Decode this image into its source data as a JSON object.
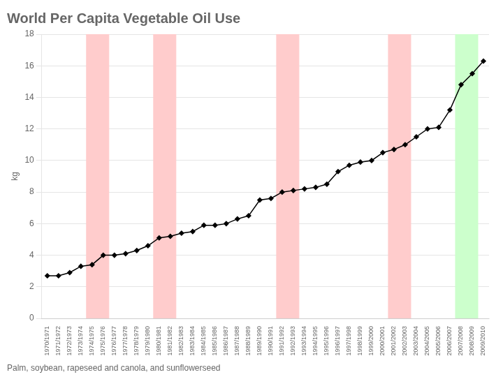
{
  "chart_data": {
    "type": "line",
    "title": "World Per Capita Vegetable Oil Use",
    "subtitle": "Palm, soybean, rapeseed and canola, and sunflowerseed",
    "ylabel": "kg",
    "categories": [
      "1970/1971",
      "1971/1972",
      "1972/1973",
      "1973/1974",
      "1974/1975",
      "1975/1976",
      "1976/1977",
      "1977/1978",
      "1978/1979",
      "1979/1980",
      "1980/1981",
      "1981/1982",
      "1982/1983",
      "1983/1984",
      "1984/1985",
      "1985/1986",
      "1986/1987",
      "1987/1988",
      "1988/1989",
      "1989/1990",
      "1990/1991",
      "1991/1992",
      "1992/1993",
      "1993/1994",
      "1994/1995",
      "1995/1996",
      "1996/1997",
      "1997/1998",
      "1998/1999",
      "1999/2000",
      "2000/2001",
      "2001/2002",
      "2002/2003",
      "2003/2004",
      "2004/2005",
      "2005/2006",
      "2006/2007",
      "2007/2008",
      "2008/2009",
      "2009/2010"
    ],
    "values": [
      2.7,
      2.7,
      2.9,
      3.3,
      3.4,
      4.0,
      4.0,
      4.1,
      4.3,
      4.6,
      5.1,
      5.2,
      5.4,
      5.5,
      5.9,
      5.9,
      6.0,
      6.3,
      6.5,
      7.5,
      7.6,
      8.0,
      8.1,
      8.2,
      8.3,
      8.5,
      9.3,
      9.7,
      9.9,
      10.0,
      10.5,
      10.7,
      11.0,
      11.5,
      12.0,
      12.1,
      13.2,
      14.8,
      15.5,
      16.3
    ],
    "color": "#000000",
    "marker": "diamond",
    "bands": [
      {
        "from": "1974/1975",
        "to": "1975/1976",
        "color": "#ffcccc"
      },
      {
        "from": "1980/1981",
        "to": "1981/1982",
        "color": "#ffcccc"
      },
      {
        "from": "1991/1992",
        "to": "1992/1993",
        "color": "#ffcccc"
      },
      {
        "from": "2001/2002",
        "to": "2002/2003",
        "color": "#ffcccc"
      },
      {
        "from": "2007/2008",
        "to": "2008/2009",
        "color": "#ccffcc"
      }
    ],
    "ylim": [
      0,
      18
    ],
    "yticks": [
      0,
      2,
      4,
      6,
      8,
      10,
      12,
      14,
      16,
      18
    ],
    "grid": true
  }
}
